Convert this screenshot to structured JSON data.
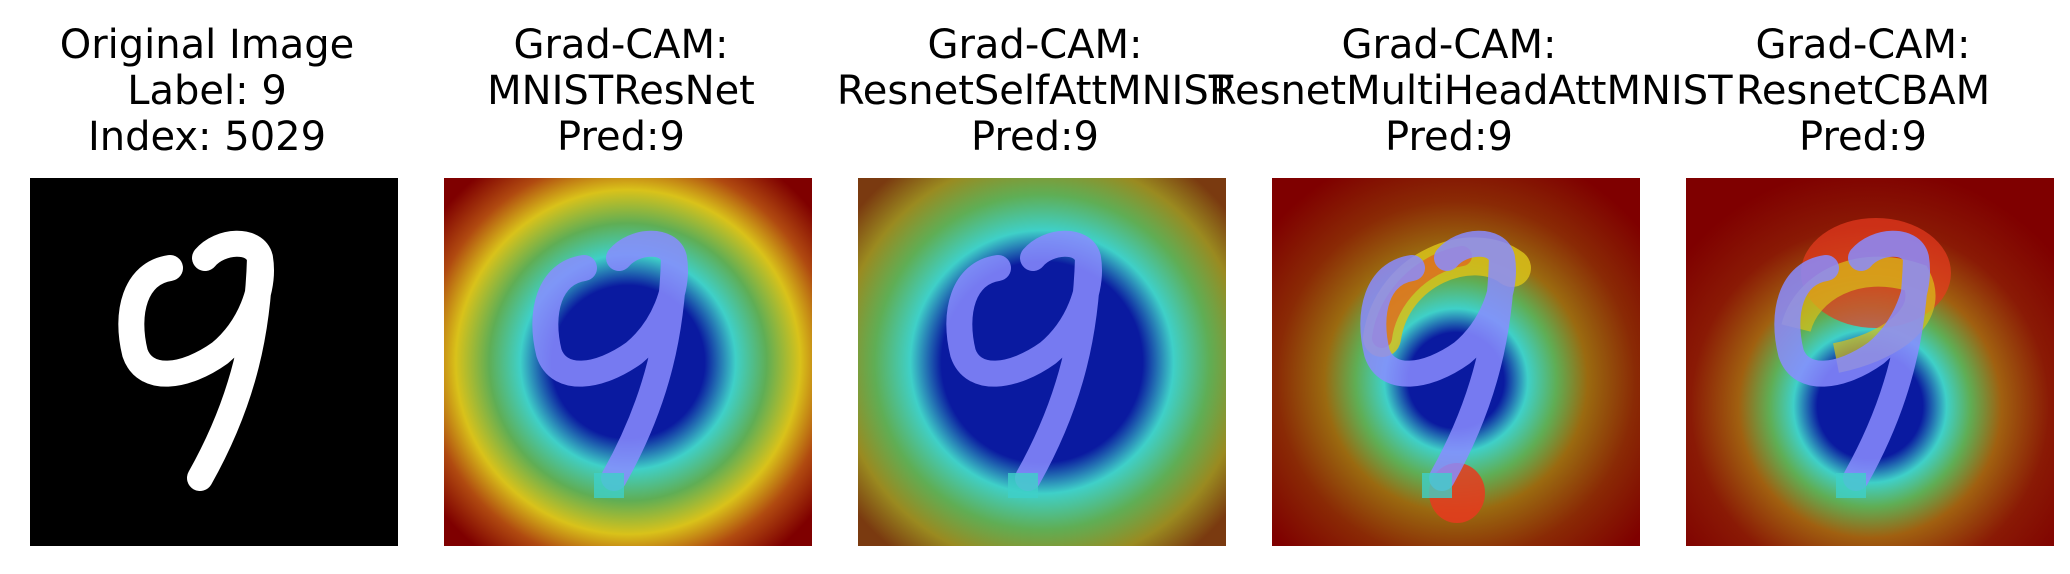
{
  "panels": [
    {
      "lines": [
        "Original Image",
        "Label: 9",
        "Index: 5029"
      ],
      "kind": "original"
    },
    {
      "lines": [
        "Grad-CAM:",
        "MNISTResNet",
        "Pred:9"
      ],
      "kind": "cam-center"
    },
    {
      "lines": [
        "Grad-CAM:",
        "ResnetSelfAttMNIST",
        "Pred:9"
      ],
      "kind": "cam-center-wide"
    },
    {
      "lines": [
        "Grad-CAM:",
        "ResnetMultiHeadAttMNIST",
        "Pred:9"
      ],
      "kind": "cam-loop"
    },
    {
      "lines": [
        "Grad-CAM:",
        "ResnetCBAM",
        "Pred:9"
      ],
      "kind": "cam-top"
    }
  ],
  "colors": {
    "background": "#000000",
    "digit": "#ffffff",
    "jet_dark_red": "#7f0000",
    "jet_red": "#e83a1f",
    "jet_yellow": "#d9c21a",
    "jet_green": "#5fae55",
    "jet_cyan": "#3fd0c8",
    "jet_blue": "#0a1aa0"
  }
}
